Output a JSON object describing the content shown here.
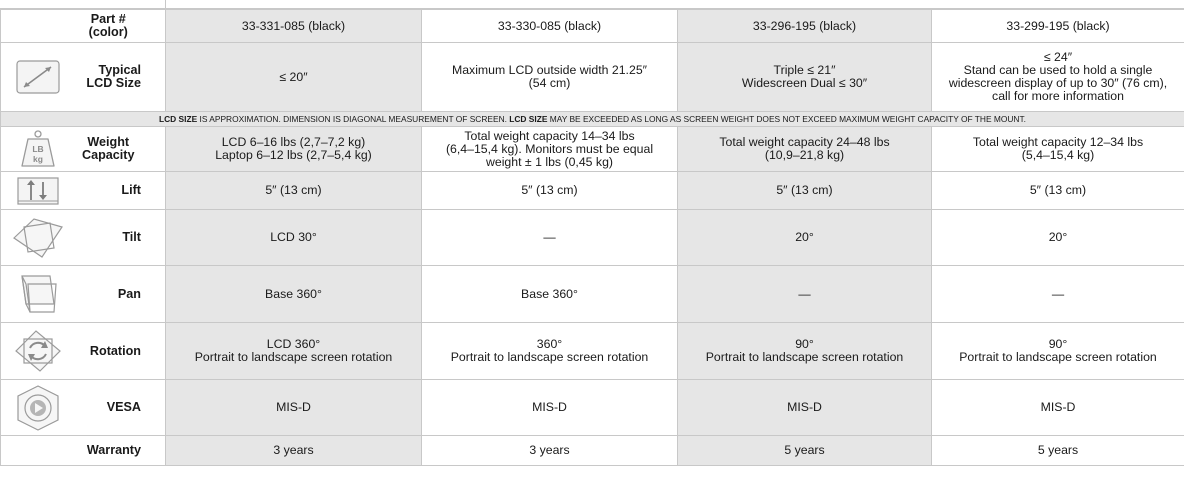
{
  "columns": [
    {
      "part": "33-331-085 (black)"
    },
    {
      "part": "33-330-085 (black)"
    },
    {
      "part": "33-296-195 (black)"
    },
    {
      "part": "33-299-195 (black)"
    }
  ],
  "rows": {
    "part": {
      "label": [
        "Part #",
        "(color)"
      ]
    },
    "lcd_size": {
      "label": [
        "Typical",
        "LCD Size"
      ],
      "icon": "diagonal-arrow-icon",
      "cells": [
        [
          "≤ 20″"
        ],
        [
          "Maximum LCD outside width 21.25″",
          "(54 cm)"
        ],
        [
          "Triple ≤ 21″",
          "Widescreen Dual ≤ 30″"
        ],
        [
          "≤ 24″",
          "Stand can be used to hold a single",
          "widescreen display of up to 30″ (76 cm),",
          "call for more information"
        ]
      ]
    },
    "note": {
      "parts": [
        {
          "text": "LCD SIZE",
          "bold": true
        },
        {
          "text": " IS APPROXIMATION. DIMENSION IS DIAGONAL MEASUREMENT OF SCREEN. ",
          "bold": false
        },
        {
          "text": "LCD SIZE",
          "bold": true
        },
        {
          "text": " MAY BE EXCEEDED AS LONG AS SCREEN WEIGHT DOES NOT EXCEED MAXIMUM WEIGHT CAPACITY OF THE MOUNT.",
          "bold": false
        }
      ]
    },
    "weight": {
      "label": [
        "Weight",
        "Capacity"
      ],
      "icon": "weight-icon",
      "icon_text": [
        "LB",
        "kg"
      ],
      "cells": [
        [
          "LCD 6–16 lbs (2,7–7,2 kg)",
          "Laptop 6–12 lbs (2,7–5,4 kg)"
        ],
        [
          "Total weight capacity 14–34 lbs",
          "(6,4–15,4 kg). Monitors must be equal",
          "weight ± 1 lbs (0,45 kg)"
        ],
        [
          "Total weight capacity 24–48 lbs",
          "(10,9–21,8 kg)"
        ],
        [
          "Total weight capacity 12–34 lbs",
          "(5,4–15,4 kg)"
        ]
      ]
    },
    "lift": {
      "label": [
        "Lift"
      ],
      "icon": "lift-icon",
      "cells": [
        [
          "5″ (13 cm)"
        ],
        [
          "5″ (13 cm)"
        ],
        [
          "5″ (13 cm)"
        ],
        [
          "5″ (13 cm)"
        ]
      ]
    },
    "tilt": {
      "label": [
        "Tilt"
      ],
      "icon": "tilt-icon",
      "cells": [
        [
          "LCD 30°"
        ],
        [
          "—"
        ],
        [
          "20°"
        ],
        [
          "20°"
        ]
      ]
    },
    "pan": {
      "label": [
        "Pan"
      ],
      "icon": "pan-icon",
      "cells": [
        [
          "Base 360°"
        ],
        [
          "Base 360°"
        ],
        [
          "—"
        ],
        [
          "—"
        ]
      ]
    },
    "rotation": {
      "label": [
        "Rotation"
      ],
      "icon": "rotation-icon",
      "cells": [
        [
          "LCD 360°",
          "Portrait to landscape screen rotation"
        ],
        [
          "360°",
          "Portrait to landscape screen rotation"
        ],
        [
          "90°",
          "Portrait to landscape screen rotation"
        ],
        [
          "90°",
          "Portrait to landscape screen rotation"
        ]
      ]
    },
    "vesa": {
      "label": [
        "VESA"
      ],
      "icon": "vesa-icon",
      "cells": [
        [
          "MIS-D"
        ],
        [
          "MIS-D"
        ],
        [
          "MIS-D"
        ],
        [
          "MIS-D"
        ]
      ]
    },
    "warranty": {
      "label": [
        "Warranty"
      ],
      "cells": [
        [
          "3 years"
        ],
        [
          "3 years"
        ],
        [
          "5 years"
        ],
        [
          "5 years"
        ]
      ]
    }
  }
}
